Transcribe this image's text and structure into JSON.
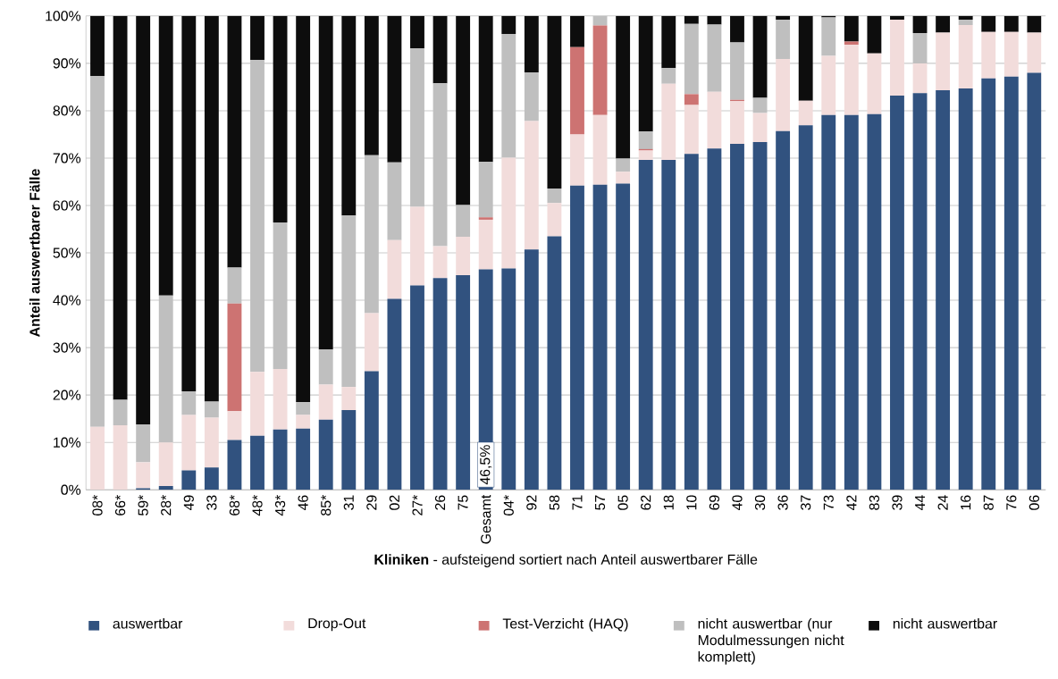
{
  "chart_data": {
    "type": "bar",
    "stacked": true,
    "xlabel": "**Kliniken** - aufsteigend sortiert nach Anteil auswertbarer Fälle",
    "ylabel": "Anteil auswertbarer Fälle",
    "categories": [
      "08*",
      "66*",
      "59*",
      "28*",
      "49",
      "33",
      "68*",
      "48*",
      "43*",
      "46",
      "85*",
      "31",
      "29",
      "02",
      "27*",
      "26",
      "75",
      "Gesamt",
      "04*",
      "92",
      "58",
      "71",
      "57",
      "05",
      "62",
      "18",
      "10",
      "69",
      "40",
      "30",
      "36",
      "37",
      "73",
      "42",
      "83",
      "39",
      "44",
      "24",
      "16",
      "87",
      "76",
      "06"
    ],
    "ylim": [
      0,
      100
    ],
    "yticks": [
      {
        "value": 0,
        "label": "0%"
      },
      {
        "value": 10,
        "label": "10%"
      },
      {
        "value": 20,
        "label": "20%"
      },
      {
        "value": 30,
        "label": "30%"
      },
      {
        "value": 40,
        "label": "40%"
      },
      {
        "value": 50,
        "label": "50%"
      },
      {
        "value": 60,
        "label": "60%"
      },
      {
        "value": 70,
        "label": "70%"
      },
      {
        "value": 80,
        "label": "80%"
      },
      {
        "value": 90,
        "label": "90%"
      },
      {
        "value": 100,
        "label": "100%"
      }
    ],
    "grid": "y",
    "legend": "bottom",
    "series": [
      {
        "name": "auswertbar",
        "color": "#31527f",
        "values": [
          0,
          0,
          0.3,
          0.8,
          4.1,
          4.7,
          10.5,
          11.4,
          12.7,
          12.9,
          14.8,
          16.8,
          25,
          40.3,
          43.1,
          44.7,
          45.3,
          46.5,
          46.7,
          50.7,
          53.5,
          64.2,
          64.4,
          64.6,
          69.6,
          69.6,
          70.9,
          72,
          73,
          73.4,
          75.7,
          76.9,
          79.1,
          79.1,
          79.3,
          83.2,
          83.7,
          84.3,
          84.7,
          86.8,
          87.2,
          88
        ],
        "value_labels": [
          null,
          null,
          null,
          null,
          null,
          null,
          null,
          null,
          null,
          null,
          null,
          null,
          null,
          null,
          null,
          null,
          null,
          "46,5%",
          null,
          null,
          null,
          null,
          null,
          null,
          null,
          null,
          null,
          null,
          null,
          null,
          null,
          null,
          null,
          null,
          null,
          null,
          null,
          null,
          null,
          null,
          null,
          null
        ]
      },
      {
        "name": "Drop-Out",
        "color": "#f2dcdb",
        "values": [
          13.3,
          13.6,
          5.5,
          9.2,
          11.7,
          10.5,
          6.1,
          13.5,
          12.8,
          2.9,
          7.4,
          4.9,
          12.3,
          12.4,
          16.6,
          6.7,
          8.1,
          10.5,
          23.4,
          27.1,
          7,
          10.8,
          14.7,
          2.5,
          2,
          16.1,
          10.3,
          12,
          9,
          6.1,
          15.2,
          5.2,
          12.5,
          14.8,
          12.8,
          16,
          6.3,
          12.2,
          13.4,
          9.8,
          9.4,
          8.5
        ]
      },
      {
        "name": "Test-Verzicht (HAQ)",
        "color": "#cd7372",
        "values": [
          0,
          0,
          0,
          0,
          0,
          0,
          22.7,
          0,
          0,
          0,
          0,
          0,
          0,
          0,
          0,
          0,
          0,
          0.5,
          0,
          0,
          0,
          18.4,
          18.9,
          0,
          0.3,
          0,
          2.3,
          0,
          0.3,
          0,
          0,
          0,
          0,
          0.7,
          0,
          0,
          0,
          0,
          0,
          0,
          0,
          0
        ]
      },
      {
        "name": "nicht auswertbar (nur Modulmessungen nicht komplett)",
        "color": "#bfbfbf",
        "values": [
          74,
          5.4,
          8,
          31,
          5,
          3.4,
          7.6,
          65.8,
          30.9,
          2.7,
          7.4,
          36.2,
          33.3,
          16.4,
          33.5,
          34.4,
          6.7,
          11.7,
          26.1,
          10.3,
          3.1,
          0,
          2,
          2.8,
          3.7,
          3.3,
          14.8,
          14.2,
          12.1,
          3.2,
          8.3,
          0,
          8.1,
          0,
          0,
          0,
          6.4,
          0,
          1.1,
          0,
          0,
          0
        ]
      },
      {
        "name": "nicht auswertbar",
        "color": "#0d0d0d",
        "values": [
          12.7,
          81,
          86.2,
          59,
          79.2,
          81.4,
          53.1,
          9.3,
          43.6,
          81.5,
          70.4,
          42.1,
          29.4,
          30.9,
          6.8,
          14.2,
          39.9,
          30.8,
          3.8,
          11.9,
          36.4,
          6.6,
          0,
          30.1,
          24.4,
          11,
          1.7,
          1.8,
          5.6,
          17.3,
          0.8,
          17.9,
          0.3,
          5.4,
          7.9,
          0.8,
          3.6,
          3.5,
          0.8,
          3.4,
          3.4,
          3.5
        ]
      }
    ]
  }
}
